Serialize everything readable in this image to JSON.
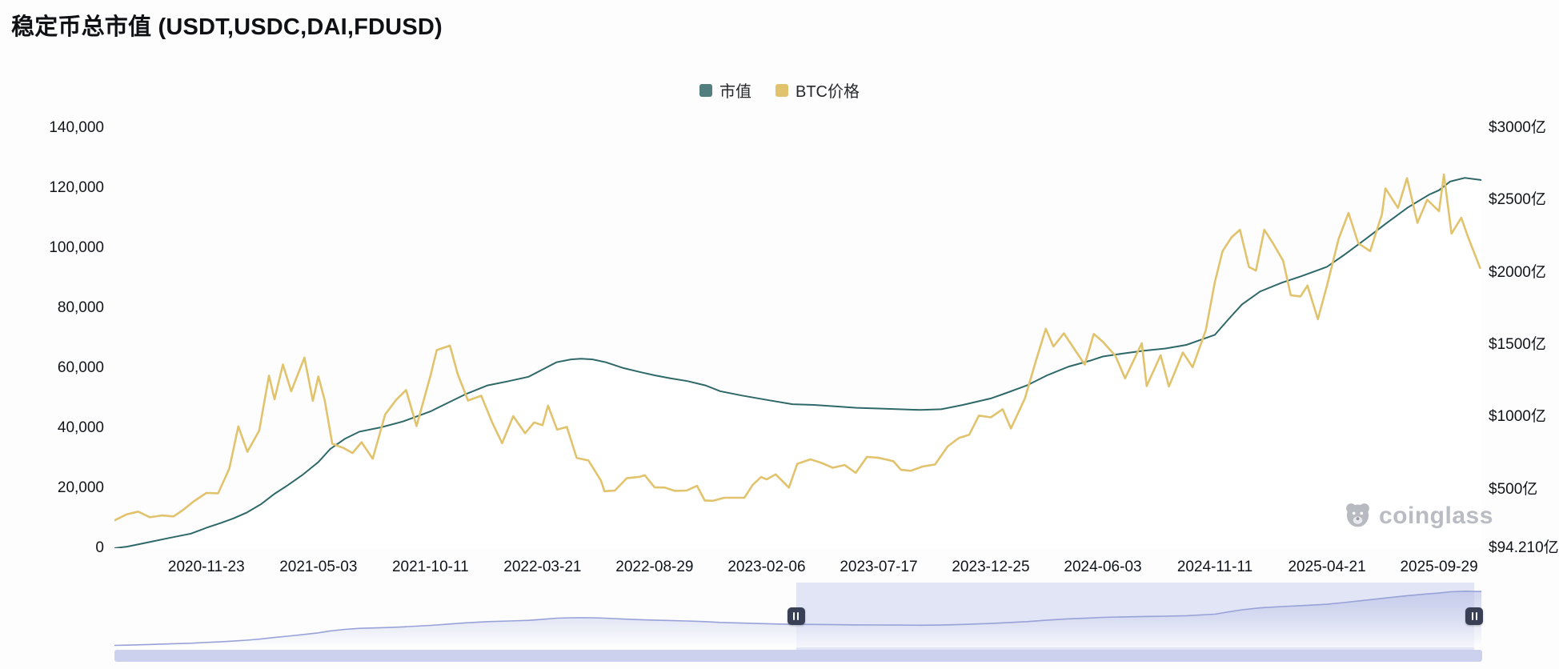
{
  "title": "稳定币总市值 (USDT,USDC,DAI,FDUSD)",
  "legend": [
    {
      "label": "市值",
      "color": "#527e80"
    },
    {
      "label": "BTC价格",
      "color": "#e2c36d"
    }
  ],
  "watermark": {
    "text": "coinglass"
  },
  "colors": {
    "area_stroke": "#2f6868",
    "area_top": "#4d8184",
    "btc_line": "#e2c36d",
    "nav_line": "#98a2d8",
    "nav_selection": "#e2e5f6",
    "nav_strip": "#ccd1ee",
    "handle": "#394056"
  },
  "chart_data": {
    "type": "area",
    "title": "稳定币总市值 (USDT,USDC,DAI,FDUSD)",
    "x_range": [
      "2020-07-14",
      "2025-11-30"
    ],
    "x_ticks": [
      "2020-11-23",
      "2021-05-03",
      "2021-10-11",
      "2022-03-21",
      "2022-08-29",
      "2023-02-06",
      "2023-07-17",
      "2023-12-25",
      "2024-06-03",
      "2024-11-11",
      "2025-04-21",
      "2025-09-29"
    ],
    "left_axis": {
      "series": "BTC价格",
      "min": 0,
      "max": 140000,
      "ticks": [
        0,
        20000,
        40000,
        60000,
        80000,
        100000,
        120000,
        140000
      ]
    },
    "right_axis": {
      "series": "市值",
      "min": 94.21,
      "max": 3000,
      "unit": "亿",
      "tick_values": [
        94.21,
        500,
        1000,
        1500,
        2000,
        2500,
        3000
      ],
      "tick_labels": [
        "$94.210亿",
        "$500亿",
        "$1000亿",
        "$1500亿",
        "$2000亿",
        "$2500亿",
        "$3000亿"
      ]
    },
    "series": [
      {
        "name": "市值",
        "type": "area",
        "axis": "right",
        "unit": "亿USD",
        "points": [
          [
            "2020-07-14",
            94.21
          ],
          [
            "2020-08-01",
            105
          ],
          [
            "2020-09-01",
            135
          ],
          [
            "2020-10-01",
            165
          ],
          [
            "2020-11-01",
            195
          ],
          [
            "2020-11-23",
            235
          ],
          [
            "2020-12-15",
            270
          ],
          [
            "2021-01-01",
            300
          ],
          [
            "2021-01-20",
            340
          ],
          [
            "2021-02-10",
            400
          ],
          [
            "2021-03-01",
            470
          ],
          [
            "2021-03-20",
            530
          ],
          [
            "2021-04-10",
            600
          ],
          [
            "2021-05-03",
            690
          ],
          [
            "2021-05-20",
            780
          ],
          [
            "2021-06-10",
            850
          ],
          [
            "2021-07-01",
            900
          ],
          [
            "2021-08-01",
            930
          ],
          [
            "2021-09-01",
            970
          ],
          [
            "2021-10-11",
            1040
          ],
          [
            "2021-11-01",
            1090
          ],
          [
            "2021-12-01",
            1160
          ],
          [
            "2022-01-01",
            1220
          ],
          [
            "2022-02-01",
            1250
          ],
          [
            "2022-03-01",
            1280
          ],
          [
            "2022-03-21",
            1330
          ],
          [
            "2022-04-10",
            1380
          ],
          [
            "2022-05-01",
            1400
          ],
          [
            "2022-05-15",
            1405
          ],
          [
            "2022-06-01",
            1400
          ],
          [
            "2022-06-20",
            1380
          ],
          [
            "2022-07-15",
            1340
          ],
          [
            "2022-08-10",
            1310
          ],
          [
            "2022-08-29",
            1290
          ],
          [
            "2022-09-20",
            1270
          ],
          [
            "2022-10-15",
            1250
          ],
          [
            "2022-11-10",
            1220
          ],
          [
            "2022-12-01",
            1180
          ],
          [
            "2023-01-01",
            1150
          ],
          [
            "2023-02-06",
            1120
          ],
          [
            "2023-03-15",
            1090
          ],
          [
            "2023-04-15",
            1085
          ],
          [
            "2023-05-15",
            1075
          ],
          [
            "2023-06-15",
            1065
          ],
          [
            "2023-07-17",
            1060
          ],
          [
            "2023-08-15",
            1055
          ],
          [
            "2023-09-15",
            1050
          ],
          [
            "2023-10-15",
            1055
          ],
          [
            "2023-11-15",
            1085
          ],
          [
            "2023-12-25",
            1130
          ],
          [
            "2024-01-15",
            1165
          ],
          [
            "2024-02-15",
            1220
          ],
          [
            "2024-03-15",
            1290
          ],
          [
            "2024-04-15",
            1350
          ],
          [
            "2024-05-15",
            1390
          ],
          [
            "2024-06-03",
            1420
          ],
          [
            "2024-07-01",
            1440
          ],
          [
            "2024-08-01",
            1460
          ],
          [
            "2024-09-01",
            1475
          ],
          [
            "2024-10-01",
            1500
          ],
          [
            "2024-11-11",
            1570
          ],
          [
            "2024-12-01",
            1680
          ],
          [
            "2024-12-20",
            1780
          ],
          [
            "2025-01-15",
            1870
          ],
          [
            "2025-02-15",
            1930
          ],
          [
            "2025-03-15",
            1975
          ],
          [
            "2025-04-21",
            2040
          ],
          [
            "2025-05-15",
            2120
          ],
          [
            "2025-06-15",
            2230
          ],
          [
            "2025-07-15",
            2340
          ],
          [
            "2025-08-15",
            2450
          ],
          [
            "2025-09-15",
            2540
          ],
          [
            "2025-09-29",
            2570
          ],
          [
            "2025-10-15",
            2630
          ],
          [
            "2025-11-05",
            2655
          ],
          [
            "2025-11-29",
            2640
          ]
        ]
      },
      {
        "name": "BTC价格",
        "type": "line",
        "axis": "left",
        "unit": "USD",
        "points": [
          [
            "2020-07-14",
            9250
          ],
          [
            "2020-08-01",
            11300
          ],
          [
            "2020-08-17",
            12200
          ],
          [
            "2020-09-03",
            10300
          ],
          [
            "2020-09-20",
            10900
          ],
          [
            "2020-10-07",
            10600
          ],
          [
            "2020-10-21",
            12800
          ],
          [
            "2020-11-05",
            15600
          ],
          [
            "2020-11-23",
            18400
          ],
          [
            "2020-12-10",
            18300
          ],
          [
            "2020-12-26",
            26500
          ],
          [
            "2021-01-08",
            40600
          ],
          [
            "2021-01-21",
            32100
          ],
          [
            "2021-02-07",
            39200
          ],
          [
            "2021-02-21",
            57500
          ],
          [
            "2021-03-01",
            49600
          ],
          [
            "2021-03-13",
            61200
          ],
          [
            "2021-03-25",
            52300
          ],
          [
            "2021-04-13",
            63500
          ],
          [
            "2021-04-25",
            49100
          ],
          [
            "2021-05-03",
            57200
          ],
          [
            "2021-05-12",
            49300
          ],
          [
            "2021-05-23",
            34800
          ],
          [
            "2021-06-08",
            33400
          ],
          [
            "2021-06-21",
            31700
          ],
          [
            "2021-07-04",
            35300
          ],
          [
            "2021-07-20",
            29800
          ],
          [
            "2021-08-07",
            44600
          ],
          [
            "2021-08-23",
            49500
          ],
          [
            "2021-09-06",
            52700
          ],
          [
            "2021-09-21",
            40700
          ],
          [
            "2021-10-11",
            57500
          ],
          [
            "2021-10-20",
            66000
          ],
          [
            "2021-11-08",
            67500
          ],
          [
            "2021-11-19",
            58100
          ],
          [
            "2021-12-04",
            49200
          ],
          [
            "2021-12-23",
            50800
          ],
          [
            "2022-01-08",
            41700
          ],
          [
            "2022-01-22",
            35000
          ],
          [
            "2022-02-07",
            44000
          ],
          [
            "2022-02-24",
            38300
          ],
          [
            "2022-03-09",
            41900
          ],
          [
            "2022-03-21",
            41000
          ],
          [
            "2022-03-29",
            47500
          ],
          [
            "2022-04-11",
            39500
          ],
          [
            "2022-04-25",
            40400
          ],
          [
            "2022-05-09",
            30100
          ],
          [
            "2022-05-26",
            29200
          ],
          [
            "2022-06-13",
            22500
          ],
          [
            "2022-06-18",
            19000
          ],
          [
            "2022-07-03",
            19200
          ],
          [
            "2022-07-20",
            23300
          ],
          [
            "2022-08-08",
            23800
          ],
          [
            "2022-08-15",
            24300
          ],
          [
            "2022-08-29",
            20300
          ],
          [
            "2022-09-13",
            20200
          ],
          [
            "2022-09-27",
            19100
          ],
          [
            "2022-10-14",
            19200
          ],
          [
            "2022-10-29",
            20800
          ],
          [
            "2022-11-09",
            15900
          ],
          [
            "2022-11-21",
            15800
          ],
          [
            "2022-12-07",
            16800
          ],
          [
            "2022-12-22",
            16800
          ],
          [
            "2023-01-05",
            16800
          ],
          [
            "2023-01-17",
            21100
          ],
          [
            "2023-01-29",
            23700
          ],
          [
            "2023-02-06",
            22900
          ],
          [
            "2023-02-19",
            24600
          ],
          [
            "2023-03-10",
            20200
          ],
          [
            "2023-03-22",
            28100
          ],
          [
            "2023-04-10",
            29600
          ],
          [
            "2023-04-26",
            28400
          ],
          [
            "2023-05-12",
            26800
          ],
          [
            "2023-05-29",
            27700
          ],
          [
            "2023-06-14",
            25100
          ],
          [
            "2023-06-30",
            30400
          ],
          [
            "2023-07-17",
            30100
          ],
          [
            "2023-08-07",
            29000
          ],
          [
            "2023-08-18",
            26100
          ],
          [
            "2023-09-01",
            25800
          ],
          [
            "2023-09-18",
            27200
          ],
          [
            "2023-10-06",
            27900
          ],
          [
            "2023-10-24",
            33900
          ],
          [
            "2023-11-09",
            36700
          ],
          [
            "2023-11-24",
            37800
          ],
          [
            "2023-12-08",
            44200
          ],
          [
            "2023-12-25",
            43600
          ],
          [
            "2024-01-11",
            46300
          ],
          [
            "2024-01-23",
            39900
          ],
          [
            "2024-02-12",
            49900
          ],
          [
            "2024-02-28",
            62500
          ],
          [
            "2024-03-13",
            73100
          ],
          [
            "2024-03-24",
            67200
          ],
          [
            "2024-04-08",
            71600
          ],
          [
            "2024-04-23",
            66400
          ],
          [
            "2024-05-08",
            61200
          ],
          [
            "2024-05-21",
            71400
          ],
          [
            "2024-06-03",
            68800
          ],
          [
            "2024-06-21",
            64100
          ],
          [
            "2024-07-05",
            56600
          ],
          [
            "2024-07-29",
            68300
          ],
          [
            "2024-08-05",
            54000
          ],
          [
            "2024-08-25",
            64300
          ],
          [
            "2024-09-06",
            53900
          ],
          [
            "2024-09-26",
            65200
          ],
          [
            "2024-10-10",
            60300
          ],
          [
            "2024-10-29",
            72700
          ],
          [
            "2024-11-11",
            88700
          ],
          [
            "2024-11-22",
            99000
          ],
          [
            "2024-12-05",
            103600
          ],
          [
            "2024-12-17",
            106100
          ],
          [
            "2024-12-30",
            93700
          ],
          [
            "2025-01-09",
            92500
          ],
          [
            "2025-01-21",
            106100
          ],
          [
            "2025-02-03",
            101400
          ],
          [
            "2025-02-17",
            95800
          ],
          [
            "2025-02-28",
            84300
          ],
          [
            "2025-03-14",
            83900
          ],
          [
            "2025-03-24",
            87500
          ],
          [
            "2025-04-08",
            76300
          ],
          [
            "2025-04-21",
            87500
          ],
          [
            "2025-05-08",
            103200
          ],
          [
            "2025-05-22",
            111700
          ],
          [
            "2025-06-05",
            101600
          ],
          [
            "2025-06-22",
            99000
          ],
          [
            "2025-07-09",
            111300
          ],
          [
            "2025-07-14",
            119900
          ],
          [
            "2025-08-01",
            113400
          ],
          [
            "2025-08-14",
            123300
          ],
          [
            "2025-08-29",
            108400
          ],
          [
            "2025-09-12",
            116100
          ],
          [
            "2025-09-29",
            112300
          ],
          [
            "2025-10-06",
            124500
          ],
          [
            "2025-10-17",
            104800
          ],
          [
            "2025-10-31",
            110100
          ],
          [
            "2025-11-10",
            103500
          ],
          [
            "2025-11-27",
            93400
          ]
        ]
      }
    ],
    "navigator": {
      "selection_start": 0.4985,
      "selection_end": 0.9942
    }
  }
}
